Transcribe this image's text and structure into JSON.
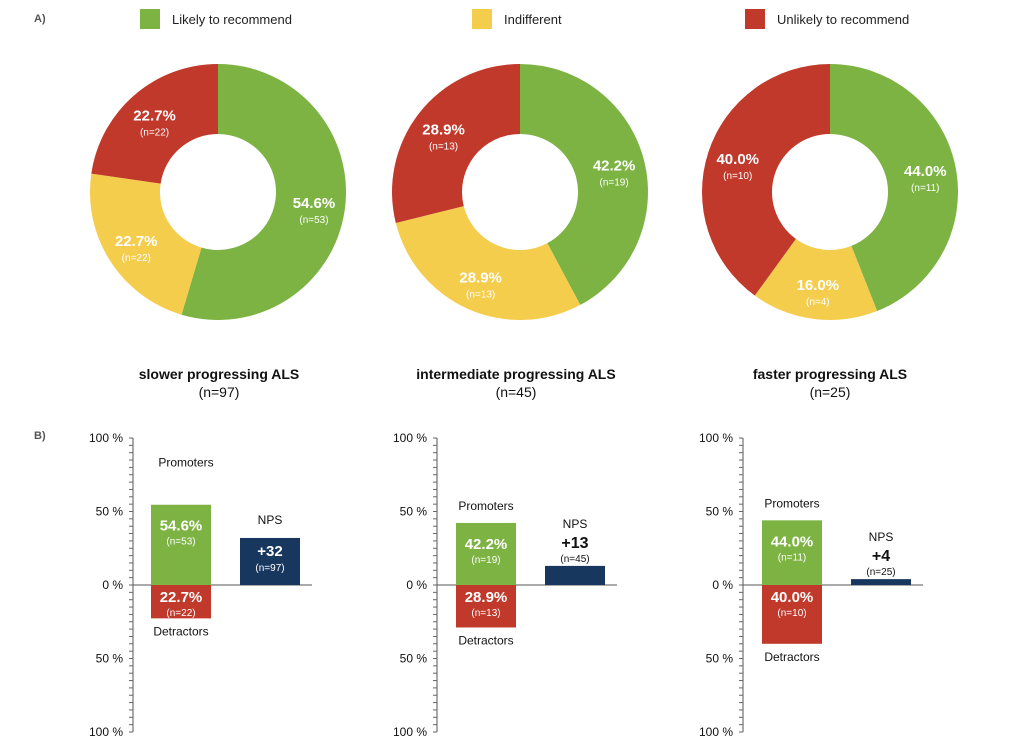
{
  "panel_labels": {
    "a": "A)",
    "b": "B)"
  },
  "legend": [
    {
      "label": "Likely to recommend",
      "color": "#7cb342"
    },
    {
      "label": "Indifferent",
      "color": "#f5cd4c"
    },
    {
      "label": "Unlikely to recommend",
      "color": "#c0392b"
    }
  ],
  "groups": [
    {
      "title": "slower progressing ALS",
      "n_label": "(n=97)"
    },
    {
      "title": "intermediate progressing ALS",
      "n_label": "(n=45)"
    },
    {
      "title": "faster progressing ALS",
      "n_label": "(n=25)"
    }
  ],
  "chart_data": [
    {
      "type": "pie",
      "subtype": "donut",
      "panel": "A",
      "title": "slower progressing ALS",
      "subtitle": "(n=97)",
      "slices": [
        {
          "label": "Likely to recommend",
          "value": 54.6,
          "text": "54.6%",
          "n": "(n=53)",
          "color": "#7cb342"
        },
        {
          "label": "Indifferent",
          "value": 22.7,
          "text": "22.7%",
          "n": "(n=22)",
          "color": "#f5cd4c"
        },
        {
          "label": "Unlikely to recommend",
          "value": 22.7,
          "text": "22.7%",
          "n": "(n=22)",
          "color": "#c0392b"
        }
      ]
    },
    {
      "type": "pie",
      "subtype": "donut",
      "panel": "A",
      "title": "intermediate progressing ALS",
      "subtitle": "(n=45)",
      "slices": [
        {
          "label": "Likely to recommend",
          "value": 42.2,
          "text": "42.2%",
          "n": "(n=19)",
          "color": "#7cb342"
        },
        {
          "label": "Indifferent",
          "value": 28.9,
          "text": "28.9%",
          "n": "(n=13)",
          "color": "#f5cd4c"
        },
        {
          "label": "Unlikely to recommend",
          "value": 28.9,
          "text": "28.9%",
          "n": "(n=13)",
          "color": "#c0392b"
        }
      ]
    },
    {
      "type": "pie",
      "subtype": "donut",
      "panel": "A",
      "title": "faster progressing ALS",
      "subtitle": "(n=25)",
      "slices": [
        {
          "label": "Likely to recommend",
          "value": 44.0,
          "text": "44.0%",
          "n": "(n=11)",
          "color": "#7cb342"
        },
        {
          "label": "Indifferent",
          "value": 16.0,
          "text": "16.0%",
          "n": "(n=4)",
          "color": "#f5cd4c"
        },
        {
          "label": "Unlikely to recommend",
          "value": 40.0,
          "text": "40.0%",
          "n": "(n=10)",
          "color": "#c0392b"
        }
      ]
    },
    {
      "type": "bar",
      "panel": "B",
      "group": "slower progressing ALS",
      "y_ticks": [
        "100 %",
        "50 %",
        "0 %",
        "50 %",
        "100 %"
      ],
      "ylim": [
        -100,
        100
      ],
      "promoters": {
        "label": "Promoters",
        "value": 54.6,
        "text": "54.6%",
        "n": "(n=53)",
        "color": "#7cb342"
      },
      "detractors": {
        "label": "Detractors",
        "value": 22.7,
        "text": "22.7%",
        "n": "(n=22)",
        "color": "#c0392b"
      },
      "nps": {
        "label": "NPS",
        "value": 32,
        "text": "+32",
        "n": "(n=97)",
        "color": "#17375e"
      }
    },
    {
      "type": "bar",
      "panel": "B",
      "group": "intermediate progressing ALS",
      "y_ticks": [
        "100 %",
        "50 %",
        "0 %",
        "50 %",
        "100 %"
      ],
      "ylim": [
        -100,
        100
      ],
      "promoters": {
        "label": "Promoters",
        "value": 42.2,
        "text": "42.2%",
        "n": "(n=19)",
        "color": "#7cb342"
      },
      "detractors": {
        "label": "Detractors",
        "value": 28.9,
        "text": "28.9%",
        "n": "(n=13)",
        "color": "#c0392b"
      },
      "nps": {
        "label": "NPS",
        "value": 13,
        "text": "+13",
        "n": "(n=45)",
        "color": "#17375e"
      }
    },
    {
      "type": "bar",
      "panel": "B",
      "group": "faster progressing ALS",
      "y_ticks": [
        "100 %",
        "50 %",
        "0 %",
        "50 %",
        "100 %"
      ],
      "ylim": [
        -100,
        100
      ],
      "promoters": {
        "label": "Promoters",
        "value": 44.0,
        "text": "44.0%",
        "n": "(n=11)",
        "color": "#7cb342"
      },
      "detractors": {
        "label": "Detractors",
        "value": 40.0,
        "text": "40.0%",
        "n": "(n=10)",
        "color": "#c0392b"
      },
      "nps": {
        "label": "NPS",
        "value": 4,
        "text": "+4",
        "n": "(n=25)",
        "color": "#17375e"
      }
    }
  ]
}
